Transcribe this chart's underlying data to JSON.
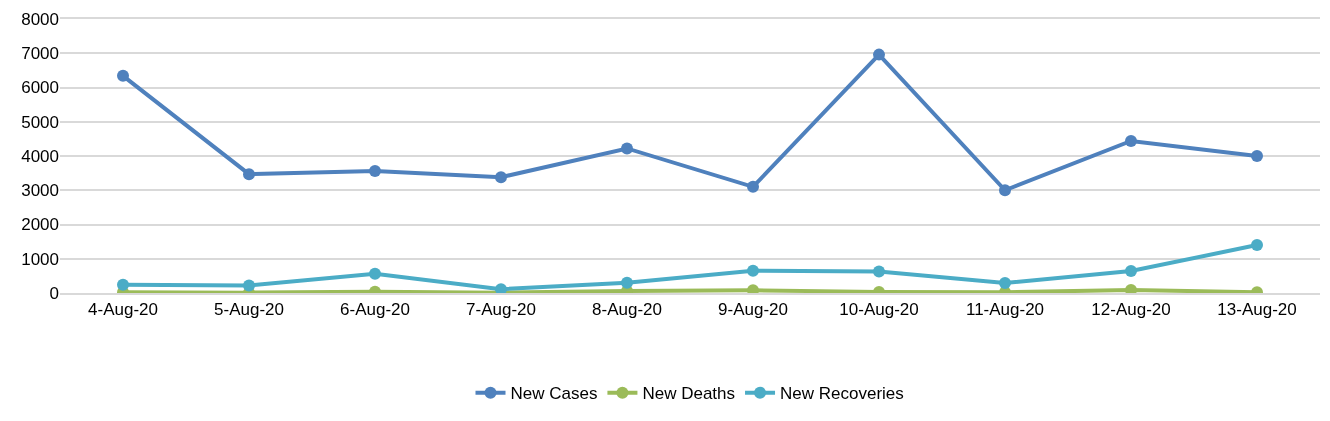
{
  "chart_data": {
    "type": "line",
    "categories": [
      "4-Aug-20",
      "5-Aug-20",
      "6-Aug-20",
      "7-Aug-20",
      "8-Aug-20",
      "9-Aug-20",
      "10-Aug-20",
      "11-Aug-20",
      "12-Aug-20",
      "13-Aug-20"
    ],
    "series": [
      {
        "name": "New Cases",
        "color": "#4f81bd",
        "values": [
          6340,
          3470,
          3560,
          3380,
          4220,
          3100,
          6960,
          3000,
          4440,
          4000
        ]
      },
      {
        "name": "New Deaths",
        "color": "#9bbb59",
        "values": [
          20,
          10,
          40,
          10,
          60,
          80,
          30,
          20,
          90,
          20
        ]
      },
      {
        "name": "New Recoveries",
        "color": "#4bacc6",
        "values": [
          240,
          220,
          560,
          110,
          300,
          650,
          630,
          290,
          640,
          1400
        ]
      }
    ],
    "ylim": [
      0,
      8000
    ],
    "yticks": [
      0,
      1000,
      2000,
      3000,
      4000,
      5000,
      6000,
      7000,
      8000
    ],
    "grid": "y",
    "legend": "bottom",
    "marker": "circle",
    "line_style": "solid"
  }
}
